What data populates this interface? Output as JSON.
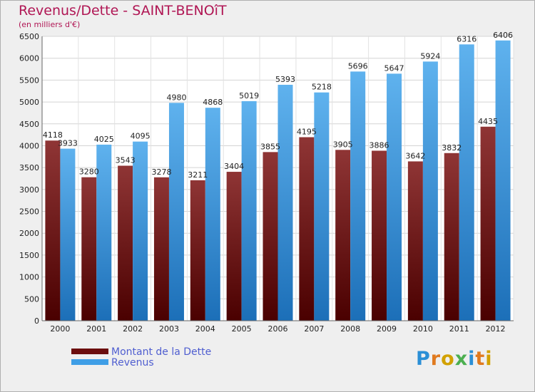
{
  "header": {
    "title": "Revenus/Dette - SAINT-BENOîT",
    "subtitle": "(en milliers d'€)"
  },
  "legend": {
    "items": [
      {
        "label": "Montant de la Dette",
        "color": "#6b0d0d"
      },
      {
        "label": "Revenus",
        "color": "#3f9ee6"
      }
    ]
  },
  "logo": {
    "letters": [
      "P",
      "r",
      "o",
      "x",
      "i",
      "t",
      "i"
    ],
    "colors": [
      "#2b8fd6",
      "#e07a1f",
      "#d2a100",
      "#4caf50",
      "#2b8fd6",
      "#e07a1f",
      "#d2a100"
    ]
  },
  "chart_data": {
    "type": "bar",
    "title": "Revenus/Dette - SAINT-BENOîT",
    "ylabel": "(en milliers d'€)",
    "xlabel": "",
    "ylim": [
      0,
      6500
    ],
    "yticks": [
      0,
      500,
      1000,
      1500,
      2000,
      2500,
      3000,
      3500,
      4000,
      4500,
      5000,
      5500,
      6000,
      6500
    ],
    "grid": true,
    "categories": [
      "2000",
      "2001",
      "2002",
      "2003",
      "2004",
      "2005",
      "2006",
      "2007",
      "2008",
      "2009",
      "2010",
      "2011",
      "2012"
    ],
    "series": [
      {
        "name": "Montant de la Dette",
        "color": "#6b0d0d",
        "values": [
          4118,
          3280,
          3543,
          3278,
          3211,
          3404,
          3855,
          4195,
          3905,
          3886,
          3642,
          3832,
          4435
        ]
      },
      {
        "name": "Revenus",
        "color": "#3f9ee6",
        "values": [
          3933,
          4025,
          4095,
          4980,
          4868,
          5019,
          5393,
          5218,
          5696,
          5647,
          5924,
          6316,
          6406
        ]
      }
    ],
    "legend_position": "bottom-left"
  }
}
